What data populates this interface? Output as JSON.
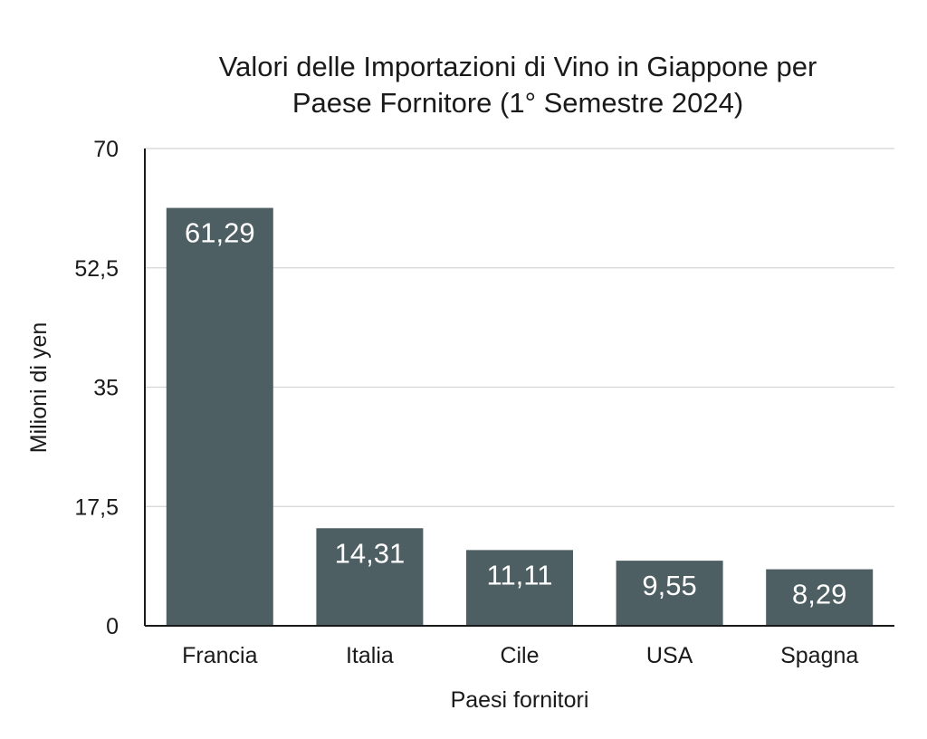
{
  "chart_data": {
    "type": "bar",
    "title_lines": [
      "Valori delle Importazioni di Vino in Giappone per",
      "Paese Fornitore (1° Semestre 2024)"
    ],
    "xlabel": "Paesi fornitori",
    "ylabel": "Milioni di yen",
    "categories": [
      "Francia",
      "Italia",
      "Cile",
      "USA",
      "Spagna"
    ],
    "values": [
      61.29,
      14.31,
      11.11,
      9.55,
      8.29
    ],
    "value_labels": [
      "61,29",
      "14,31",
      "11,11",
      "9,55",
      "8,29"
    ],
    "ylim": [
      0,
      70
    ],
    "yticks": [
      0,
      17.5,
      35,
      52.5,
      70
    ],
    "ytick_labels": [
      "0",
      "17,5",
      "35",
      "52,5",
      "70"
    ],
    "grid": true,
    "bar_color": "#4d5f63",
    "grid_color": "#d4d4d4",
    "axis_color": "#1a1a1a"
  }
}
